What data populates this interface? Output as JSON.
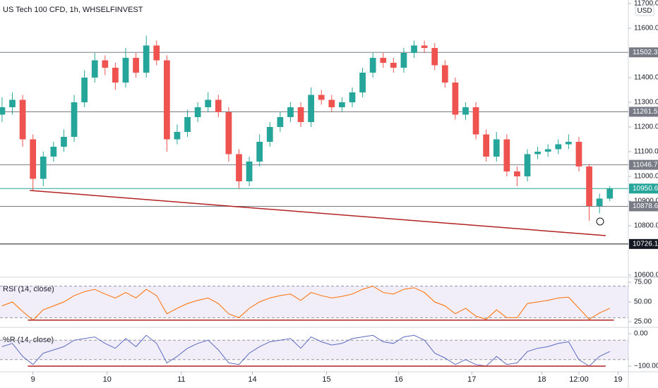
{
  "chart_data": [
    {
      "type": "candlestick",
      "title": "US Tech 100 CFD, 1h, WHSELFINVEST",
      "currency": "USD",
      "up_color": "#26a69a",
      "down_color": "#ef5350",
      "open": [
        11250,
        11280,
        11310,
        11150,
        10990,
        11080,
        11120,
        11160,
        11300,
        11400,
        11470,
        11440,
        11380,
        11480,
        11420,
        11530,
        11470,
        11150,
        11180,
        11240,
        11280,
        11310,
        11260,
        11090,
        10980,
        11060,
        11140,
        11200,
        11240,
        11280,
        11220,
        11330,
        11310,
        11280,
        11300,
        11340,
        11420,
        11480,
        11460,
        11440,
        11500,
        11530,
        11520,
        11450,
        11380,
        11250,
        11280,
        11170,
        11080,
        11150,
        11020,
        11000,
        11090,
        11100,
        11110,
        11130,
        11140,
        11040,
        10880,
        10910
      ],
      "high": [
        11320,
        11340,
        11330,
        11170,
        11100,
        11140,
        11190,
        11330,
        11430,
        11500,
        11490,
        11460,
        11520,
        11500,
        11570,
        11550,
        11490,
        11210,
        11270,
        11300,
        11340,
        11330,
        11280,
        11110,
        11080,
        11170,
        11220,
        11260,
        11300,
        11300,
        11360,
        11350,
        11330,
        11320,
        11360,
        11440,
        11500,
        11500,
        11480,
        11520,
        11550,
        11550,
        11540,
        11470,
        11400,
        11300,
        11300,
        11190,
        11180,
        11170,
        11040,
        11110,
        11120,
        11130,
        11150,
        11170,
        11160,
        11050,
        10930,
        10960
      ],
      "low": [
        11220,
        11250,
        11120,
        10940,
        10960,
        11060,
        11100,
        11140,
        11280,
        11380,
        11410,
        11350,
        11360,
        11400,
        11400,
        11450,
        11100,
        11130,
        11160,
        11220,
        11260,
        11240,
        11060,
        10950,
        10960,
        11040,
        11120,
        11180,
        11220,
        11200,
        11200,
        11290,
        11260,
        11260,
        11280,
        11320,
        11400,
        11440,
        11420,
        11420,
        11480,
        11500,
        11430,
        11360,
        11230,
        11230,
        11150,
        11060,
        11060,
        11000,
        10960,
        10980,
        11070,
        11080,
        11090,
        11110,
        11020,
        10820,
        10850,
        10900
      ],
      "close": [
        11280,
        11310,
        11150,
        10990,
        11080,
        11120,
        11160,
        11300,
        11400,
        11470,
        11440,
        11380,
        11480,
        11420,
        11530,
        11470,
        11150,
        11180,
        11240,
        11280,
        11310,
        11260,
        11090,
        10980,
        11060,
        11140,
        11200,
        11240,
        11280,
        11220,
        11330,
        11310,
        11280,
        11300,
        11340,
        11420,
        11480,
        11460,
        11440,
        11500,
        11530,
        11520,
        11450,
        11380,
        11250,
        11280,
        11170,
        11080,
        11150,
        11020,
        11000,
        11090,
        11100,
        11110,
        11130,
        11140,
        11040,
        10880,
        10910,
        10950
      ],
      "xlim": [
        -0.2,
        60.8
      ],
      "xticks": [
        {
          "value": 3,
          "label": "9"
        },
        {
          "value": 10.2,
          "label": "10"
        },
        {
          "value": 17.4,
          "label": "11"
        },
        {
          "value": 24.3,
          "label": "14"
        },
        {
          "value": 31.5,
          "label": "15"
        },
        {
          "value": 38.5,
          "label": "16"
        },
        {
          "value": 45.6,
          "label": "17"
        },
        {
          "value": 52.4,
          "label": "18"
        },
        {
          "value": 56,
          "label": "12:00"
        },
        {
          "value": 59.8,
          "label": "19"
        }
      ],
      "ylim": [
        10594.3,
        11714.3
      ],
      "yticks": [
        {
          "value": 11700,
          "label": "11700.0"
        },
        {
          "value": 11600,
          "label": "11600.0"
        },
        {
          "value": 11400,
          "label": "11400.0"
        },
        {
          "value": 11300,
          "label": "11300.0"
        },
        {
          "value": 11200,
          "label": "11200.0"
        },
        {
          "value": 11100,
          "label": "11100.0"
        },
        {
          "value": 11000,
          "label": "11000.0"
        },
        {
          "value": 10900,
          "label": "10900.0"
        },
        {
          "value": 10800,
          "label": "10800.0"
        },
        {
          "value": 10600,
          "label": "10600.0"
        }
      ],
      "levels": [
        {
          "value": 11502.3,
          "color": "#787b86"
        },
        {
          "value": 11261.5,
          "color": "#787b86"
        },
        {
          "value": 11046.7,
          "color": "#787b86"
        },
        {
          "value": 10878.6,
          "color": "#787b86"
        },
        {
          "value": 10950.6,
          "color": "#26a69a"
        },
        {
          "value": 10726.1,
          "color": "#131722"
        }
      ],
      "trendlines": [
        {
          "x": [
            2.7,
            58.6
          ],
          "y": [
            10943,
            10760
          ],
          "color": "#b22222"
        }
      ]
    },
    {
      "type": "line",
      "title": "RSI (14, close)",
      "color": "#ff6d00",
      "values": [
        45,
        50,
        38,
        27,
        40,
        45,
        50,
        58,
        63,
        66,
        60,
        55,
        62,
        55,
        66,
        58,
        35,
        42,
        48,
        52,
        55,
        48,
        35,
        30,
        42,
        50,
        55,
        58,
        60,
        52,
        62,
        58,
        55,
        57,
        60,
        66,
        70,
        62,
        60,
        66,
        68,
        62,
        50,
        45,
        35,
        42,
        32,
        28,
        40,
        30,
        30,
        48,
        50,
        52,
        55,
        56,
        42,
        28,
        36,
        42
      ],
      "ylim": [
        18.75,
        76.8
      ],
      "yticks": [
        {
          "value": 75,
          "label": "75.00"
        },
        {
          "value": 50,
          "label": "50.00"
        },
        {
          "value": 25,
          "label": "25.00"
        }
      ],
      "band": [
        30,
        70
      ],
      "band_color": "#7e57c2",
      "trendlines": [
        {
          "x": [
            2.5,
            59.4
          ],
          "y": [
            27,
            27
          ],
          "color": "#b22222"
        }
      ]
    },
    {
      "type": "line",
      "title": "%R (14, close)",
      "color": "#5b6bc0",
      "values": [
        -40,
        -30,
        -70,
        -95,
        -60,
        -50,
        -40,
        -20,
        -15,
        -10,
        -30,
        -45,
        -15,
        -40,
        -5,
        -30,
        -90,
        -70,
        -45,
        -30,
        -20,
        -50,
        -90,
        -95,
        -60,
        -40,
        -25,
        -20,
        -15,
        -45,
        -10,
        -25,
        -35,
        -30,
        -15,
        -10,
        -5,
        -25,
        -30,
        -10,
        -5,
        -20,
        -60,
        -75,
        -95,
        -80,
        -95,
        -100,
        -70,
        -95,
        -90,
        -55,
        -45,
        -40,
        -30,
        -25,
        -80,
        -100,
        -70,
        -55
      ],
      "ylim": [
        -117.4,
        15.2
      ],
      "yticks": [
        {
          "value": 0,
          "label": "0.00"
        },
        {
          "value": -100,
          "label": "−100.00"
        }
      ],
      "band": [
        -80,
        -20
      ],
      "band_color": "#7e57c2",
      "trendlines": [
        {
          "x": [
            2.5,
            58.6
          ],
          "y": [
            -100,
            -100
          ],
          "color": "#b22222"
        }
      ]
    }
  ]
}
